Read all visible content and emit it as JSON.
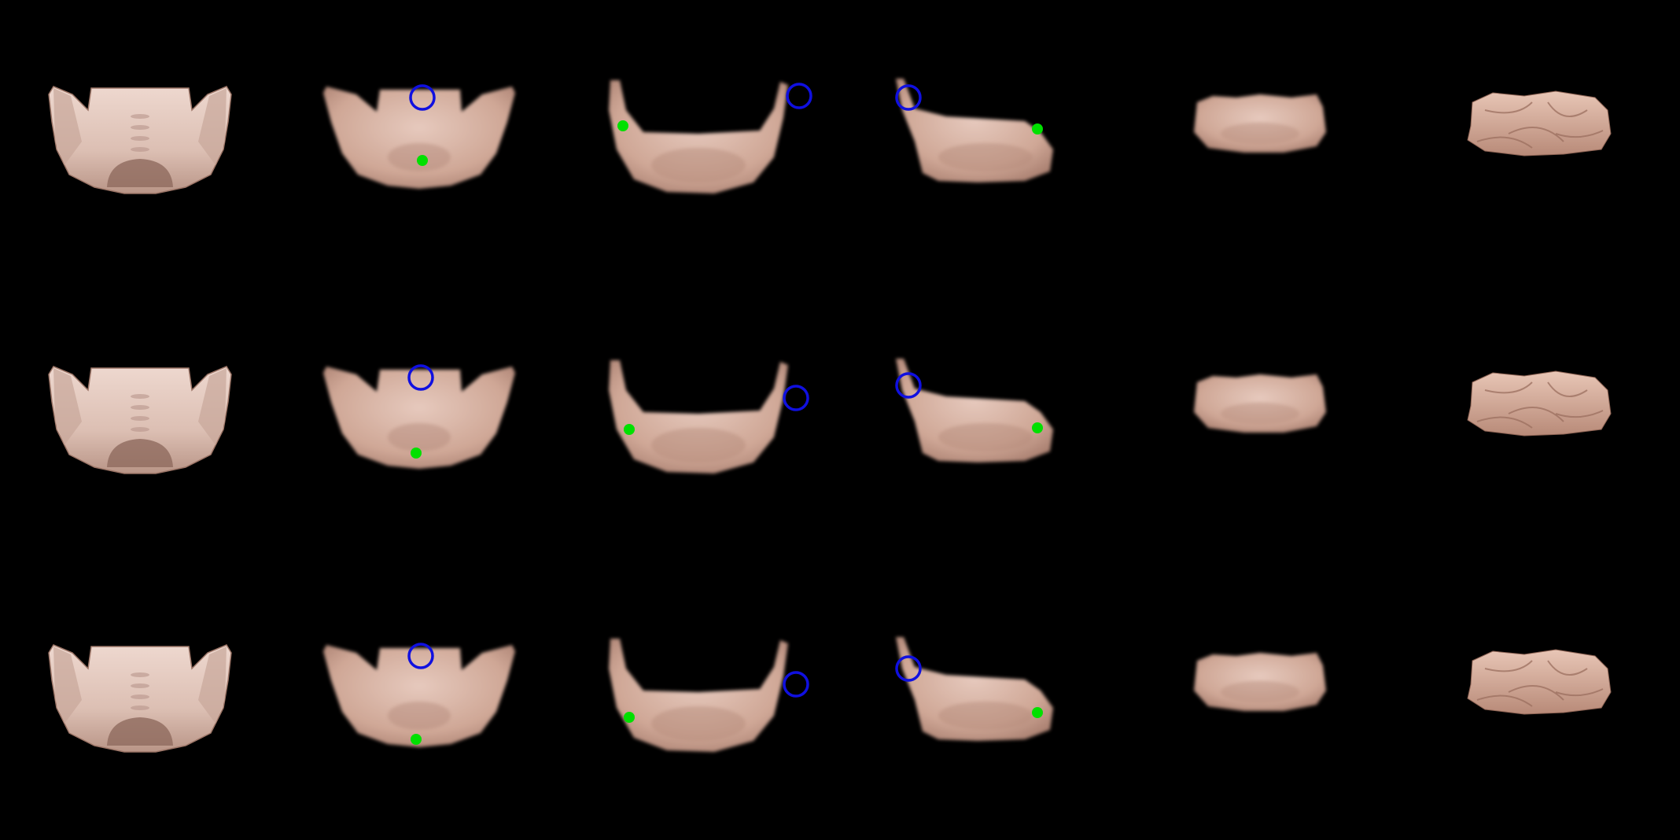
{
  "background": "#000000",
  "colors": {
    "cloth_light": "#e8cfc4",
    "cloth_mid": "#d4ab9b",
    "cloth_shadow": "#a87e70",
    "cloth_dark": "#7d574b",
    "pick_marker": "#1010e0",
    "place_marker": "#00e000"
  },
  "rows": [
    {
      "label": "",
      "frames": [
        {
          "step": 1,
          "state": "spread",
          "markers": []
        },
        {
          "step": 2,
          "state": "flat-render",
          "markers": [
            "pick-circle",
            "place-dot"
          ]
        },
        {
          "step": 3,
          "state": "fold-1",
          "markers": [
            "pick-circle",
            "place-dot"
          ]
        },
        {
          "step": 4,
          "state": "fold-2",
          "markers": [
            "pick-circle",
            "place-dot"
          ]
        },
        {
          "step": 5,
          "state": "folded-render",
          "markers": []
        },
        {
          "step": 6,
          "state": "folded-photo",
          "markers": []
        }
      ]
    },
    {
      "label": "",
      "frames": [
        {
          "step": 1,
          "state": "spread",
          "markers": []
        },
        {
          "step": 2,
          "state": "flat-render",
          "markers": [
            "pick-circle",
            "place-dot"
          ]
        },
        {
          "step": 3,
          "state": "fold-1",
          "markers": [
            "pick-circle",
            "place-dot"
          ]
        },
        {
          "step": 4,
          "state": "fold-2",
          "markers": [
            "pick-circle",
            "place-dot"
          ]
        },
        {
          "step": 5,
          "state": "folded-render",
          "markers": []
        },
        {
          "step": 6,
          "state": "folded-photo",
          "markers": []
        }
      ]
    },
    {
      "label": "",
      "frames": [
        {
          "step": 1,
          "state": "spread",
          "markers": []
        },
        {
          "step": 2,
          "state": "flat-render",
          "markers": [
            "pick-circle",
            "place-dot"
          ]
        },
        {
          "step": 3,
          "state": "fold-1",
          "markers": [
            "pick-circle",
            "place-dot"
          ]
        },
        {
          "step": 4,
          "state": "fold-2",
          "markers": [
            "pick-circle",
            "place-dot"
          ]
        },
        {
          "step": 5,
          "state": "folded-render",
          "markers": []
        },
        {
          "step": 6,
          "state": "folded-photo",
          "markers": []
        }
      ]
    }
  ]
}
